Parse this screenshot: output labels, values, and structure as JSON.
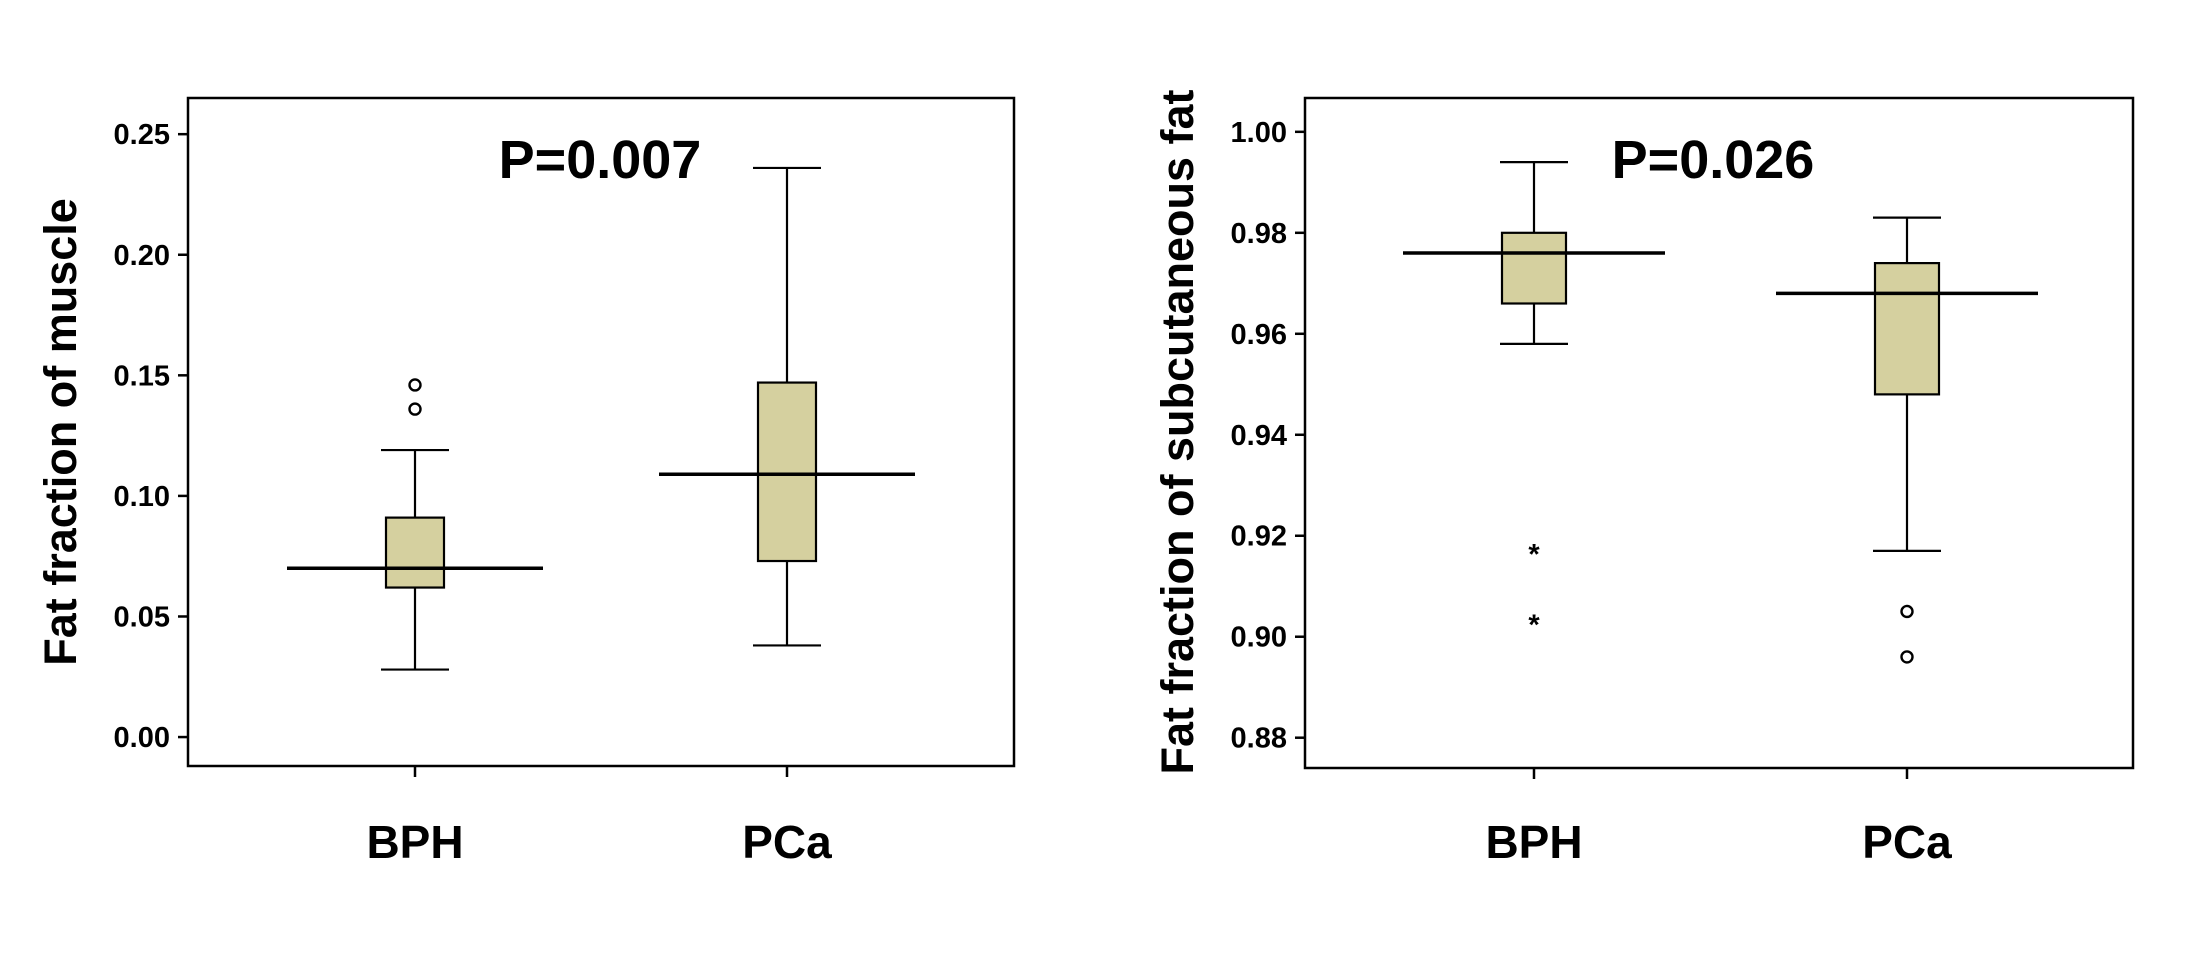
{
  "colors": {
    "box_fill": "#d5d09f",
    "line": "#000000",
    "background": "#ffffff"
  },
  "chart_data": [
    {
      "type": "box",
      "title": "",
      "annotation": "P=0.007",
      "xlabel": "",
      "ylabel": "Fat fraction of muscle",
      "ylim": [
        -0.012,
        0.265
      ],
      "yticks": [
        0.0,
        0.05,
        0.1,
        0.15,
        0.2,
        0.25
      ],
      "ytick_labels": [
        "0.00",
        "0.05",
        "0.10",
        "0.15",
        "0.20",
        "0.25"
      ],
      "categories": [
        "BPH",
        "PCa"
      ],
      "boxes": [
        {
          "category": "BPH",
          "whisker_low": 0.028,
          "q1": 0.062,
          "median": 0.07,
          "q3": 0.091,
          "whisker_high": 0.119,
          "outliers": [
            0.136,
            0.146
          ],
          "extremes": []
        },
        {
          "category": "PCa",
          "whisker_low": 0.038,
          "q1": 0.073,
          "median": 0.109,
          "q3": 0.147,
          "whisker_high": 0.236,
          "outliers": [],
          "extremes": []
        }
      ],
      "grid": false
    },
    {
      "type": "box",
      "title": "",
      "annotation": "P=0.026",
      "xlabel": "",
      "ylabel": "Fat fraction of subcutaneous fat",
      "ylim": [
        0.874,
        1.0067
      ],
      "yticks": [
        0.88,
        0.9,
        0.92,
        0.94,
        0.96,
        0.98,
        1.0
      ],
      "ytick_labels": [
        "0.88",
        "0.90",
        "0.92",
        "0.94",
        "0.96",
        "0.98",
        "1.00"
      ],
      "categories": [
        "BPH",
        "PCa"
      ],
      "boxes": [
        {
          "category": "BPH",
          "whisker_low": 0.958,
          "q1": 0.966,
          "median": 0.976,
          "q3": 0.98,
          "whisker_high": 0.994,
          "outliers": [],
          "extremes": [
            0.917,
            0.903
          ]
        },
        {
          "category": "PCa",
          "whisker_low": 0.917,
          "q1": 0.948,
          "median": 0.968,
          "q3": 0.974,
          "whisker_high": 0.983,
          "outliers": [
            0.905,
            0.896
          ],
          "extremes": []
        }
      ],
      "grid": false
    }
  ]
}
